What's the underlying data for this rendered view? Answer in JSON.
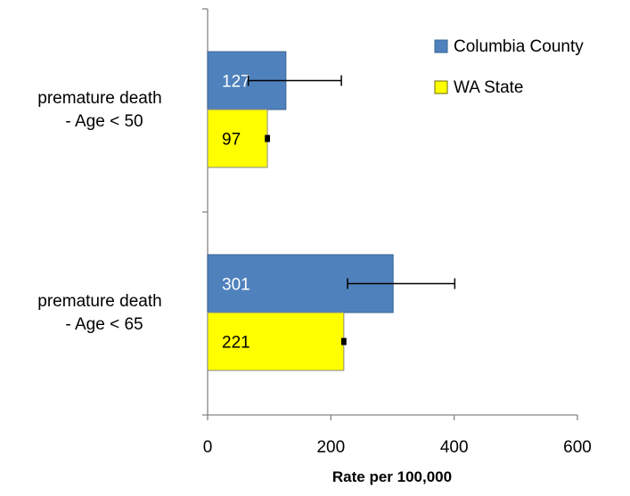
{
  "chart_data": {
    "type": "bar",
    "orientation": "horizontal",
    "categories": [
      [
        "premature death",
        "- Age < 50"
      ],
      [
        "premature death",
        "- Age < 65"
      ]
    ],
    "series": [
      {
        "name": "Columbia County",
        "color": "#4f81bd",
        "label_color": "#ffffff",
        "values": [
          127,
          301
        ],
        "error_low": [
          66,
          227
        ],
        "error_high": [
          217,
          401
        ]
      },
      {
        "name": "WA State",
        "color": "#ffff00",
        "label_color": "#000000",
        "values": [
          97,
          221
        ],
        "error_low": [
          95,
          219
        ],
        "error_high": [
          99,
          223
        ]
      }
    ],
    "xlabel": "Rate per 100,000",
    "xlim": [
      0,
      600
    ],
    "xticks": [
      0,
      200,
      400,
      600
    ],
    "grid": false,
    "legend_position": "top-right"
  }
}
